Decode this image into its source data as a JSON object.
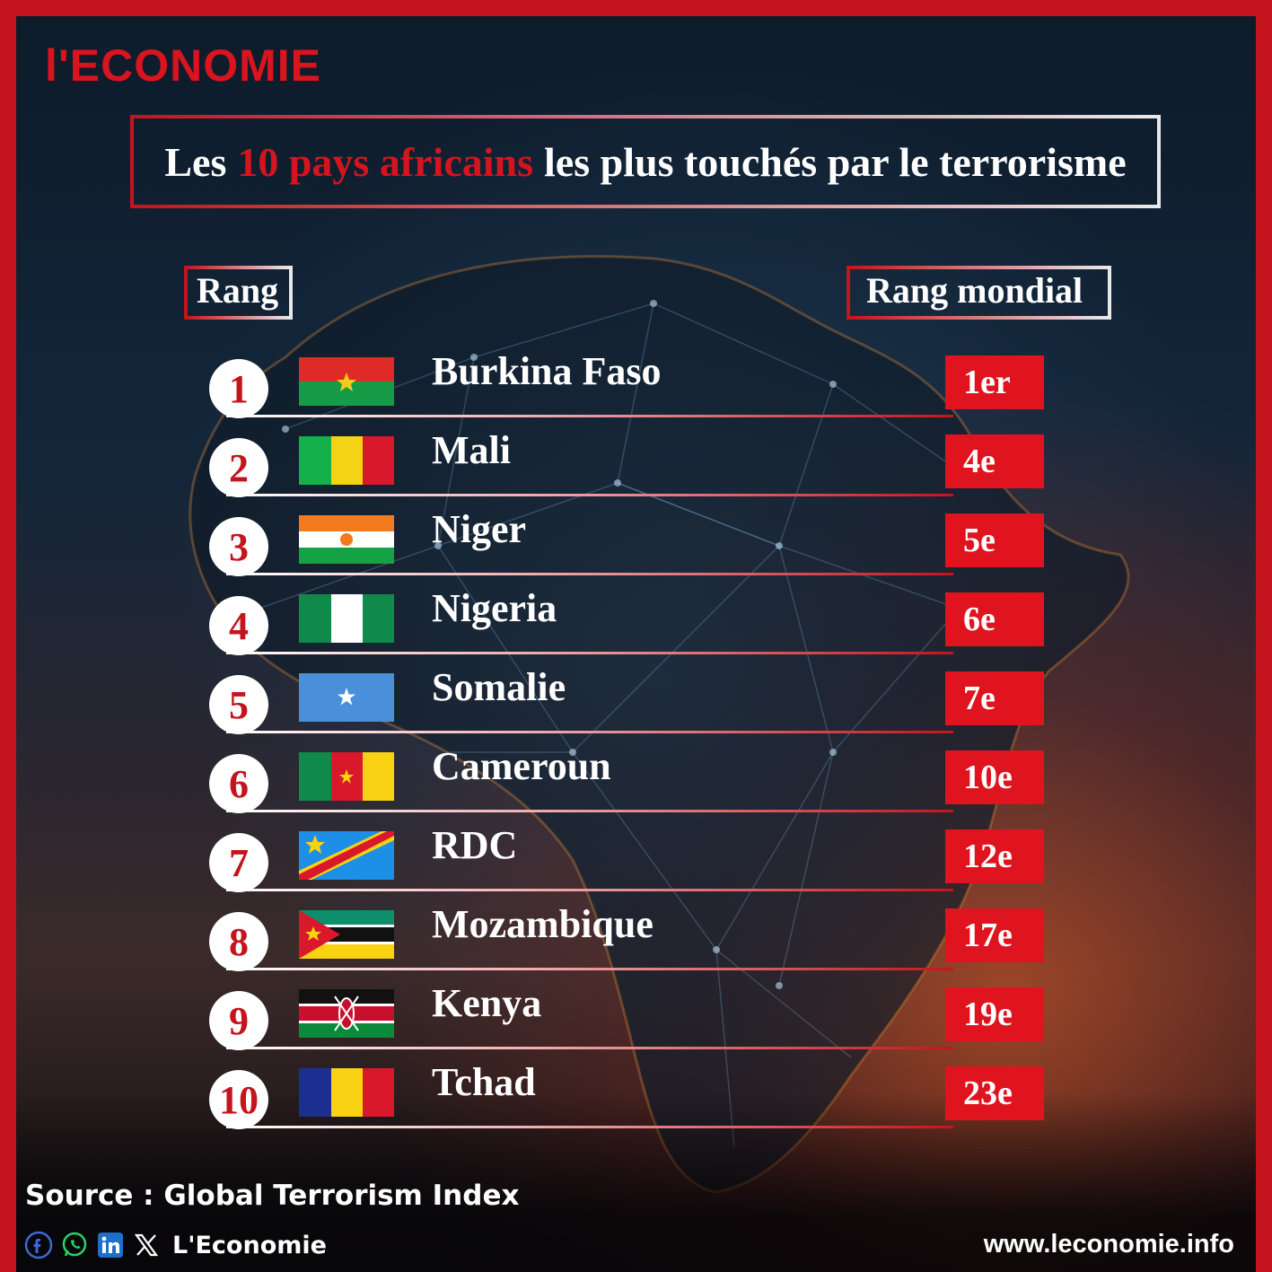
{
  "brand": {
    "logo": "l'ECONOMIE"
  },
  "title": {
    "part1": "Les",
    "accent": "10 pays africains",
    "part2": "les plus touchés par le terrorisme"
  },
  "headers": {
    "rank": "Rang",
    "world_rank": "Rang mondial"
  },
  "rows": [
    {
      "rank": "1",
      "country": "Burkina Faso",
      "world_rank": "1er",
      "flag_icon": "burkina-faso-flag-icon"
    },
    {
      "rank": "2",
      "country": "Mali",
      "world_rank": "4e",
      "flag_icon": "mali-flag-icon"
    },
    {
      "rank": "3",
      "country": "Niger",
      "world_rank": "5e",
      "flag_icon": "niger-flag-icon"
    },
    {
      "rank": "4",
      "country": "Nigeria",
      "world_rank": "6e",
      "flag_icon": "nigeria-flag-icon"
    },
    {
      "rank": "5",
      "country": "Somalie",
      "world_rank": "7e",
      "flag_icon": "somalia-flag-icon"
    },
    {
      "rank": "6",
      "country": "Cameroun",
      "world_rank": "10e",
      "flag_icon": "cameroon-flag-icon"
    },
    {
      "rank": "7",
      "country": "RDC",
      "world_rank": "12e",
      "flag_icon": "drc-flag-icon"
    },
    {
      "rank": "8",
      "country": "Mozambique",
      "world_rank": "17e",
      "flag_icon": "mozambique-flag-icon"
    },
    {
      "rank": "9",
      "country": "Kenya",
      "world_rank": "19e",
      "flag_icon": "kenya-flag-icon"
    },
    {
      "rank": "10",
      "country": "Tchad",
      "world_rank": "23e",
      "flag_icon": "chad-flag-icon"
    }
  ],
  "footer": {
    "source": "Source : Global Terrorism Index",
    "social_brand": "L'Economie",
    "website": "www.leconomie.info",
    "social_icons": [
      "facebook-icon",
      "whatsapp-icon",
      "linkedin-icon",
      "x-icon"
    ]
  },
  "colors": {
    "accent": "#c4141d",
    "badge": "#e0141e",
    "text": "#ffffff"
  }
}
